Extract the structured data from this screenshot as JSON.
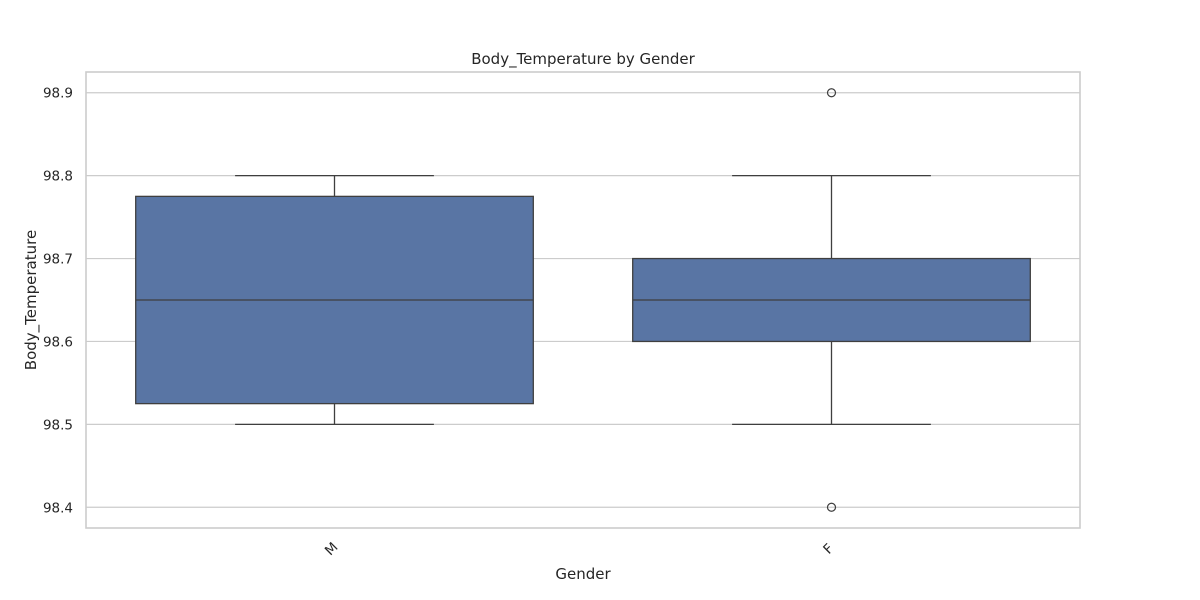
{
  "chart_data": {
    "type": "box",
    "title": "Body_Temperature by Gender",
    "xlabel": "Gender",
    "ylabel": "Body_Temperature",
    "categories": [
      "M",
      "F"
    ],
    "ylim": [
      98.375,
      98.925
    ],
    "yticks": [
      "98.4",
      "98.5",
      "98.6",
      "98.7",
      "98.8",
      "98.9"
    ],
    "grid": true,
    "box_color": "#5975a4",
    "line_color": "#3f3f3f",
    "boxes": [
      {
        "category": "M",
        "whisker_low": 98.5,
        "q1": 98.525,
        "median": 98.65,
        "q3": 98.775,
        "whisker_high": 98.8,
        "outliers": []
      },
      {
        "category": "F",
        "whisker_low": 98.5,
        "q1": 98.6,
        "median": 98.65,
        "q3": 98.7,
        "whisker_high": 98.8,
        "outliers": [
          98.9,
          98.4
        ]
      }
    ]
  }
}
